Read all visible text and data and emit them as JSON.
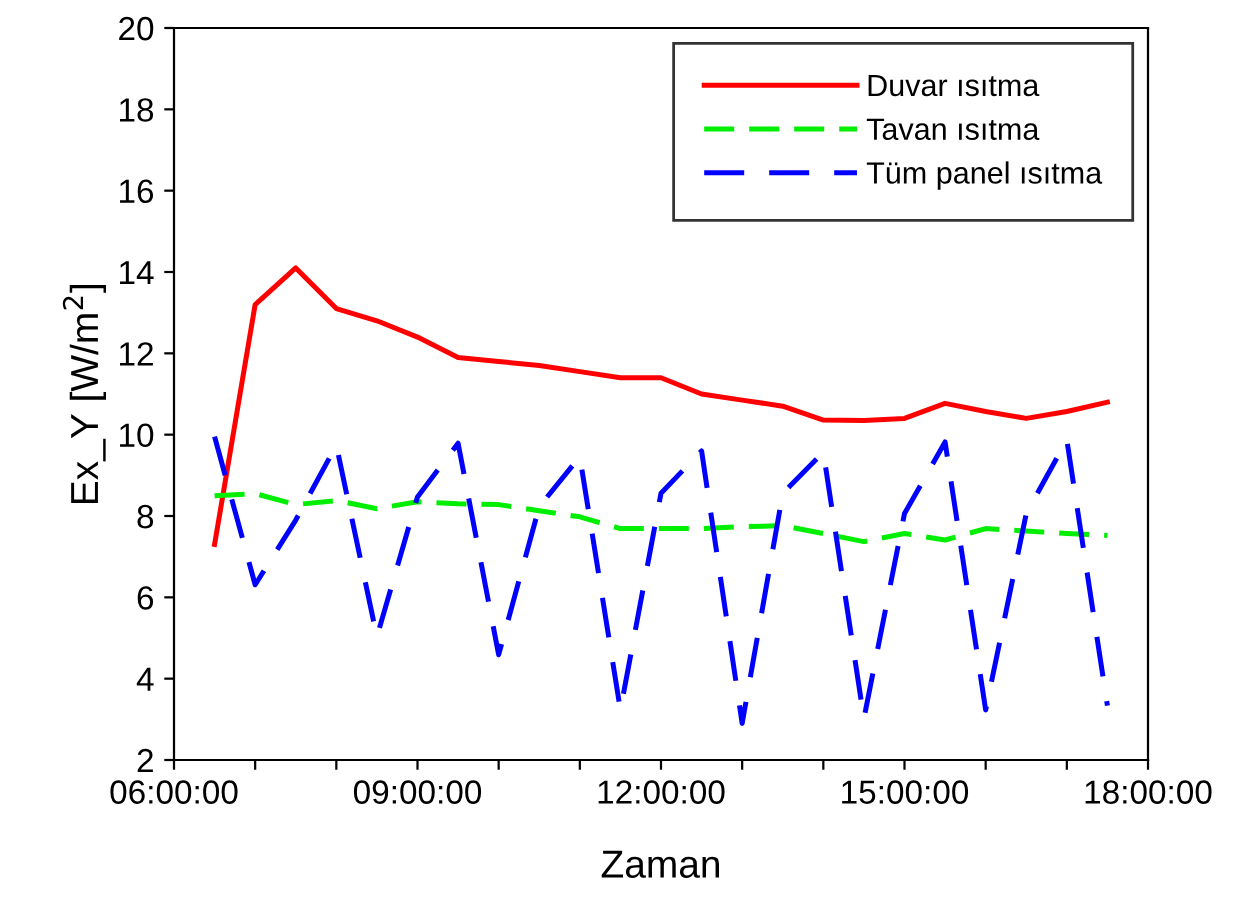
{
  "chart_data": {
    "type": "line",
    "xlabel": "Zaman",
    "ylabel": "Ex_Y [W/m$^{2}$]",
    "x": [
      6.5,
      7,
      7.5,
      8,
      8.5,
      9,
      9.5,
      10,
      10.5,
      11,
      11.5,
      12,
      12.5,
      13,
      13.5,
      14,
      14.5,
      15,
      15.5,
      16,
      16.5,
      17,
      17.5
    ],
    "series": [
      {
        "name": "Duvar ısıtma",
        "color": "#ff0000",
        "line_style": "solid",
        "values": [
          7.3,
          13.2,
          14.1,
          13.1,
          12.8,
          12.4,
          11.9,
          11.8,
          11.7,
          11.55,
          11.4,
          11.4,
          11.0,
          10.85,
          10.7,
          10.36,
          10.35,
          10.4,
          10.77,
          10.57,
          10.4,
          10.57,
          10.8
        ]
      },
      {
        "name": "Tavan ısıtma",
        "color": "#00ee00",
        "line_style": "dashed",
        "values": [
          8.5,
          8.55,
          8.28,
          8.38,
          8.18,
          8.35,
          8.3,
          8.28,
          8.13,
          7.98,
          7.69,
          7.69,
          7.69,
          7.74,
          7.76,
          7.57,
          7.37,
          7.57,
          7.41,
          7.69,
          7.63,
          7.57,
          7.52
        ]
      },
      {
        "name": "Tüm panel ısıtma",
        "color": "#0000ff",
        "line_style": "dashed",
        "values": [
          9.95,
          6.31,
          7.9,
          9.74,
          5.03,
          8.47,
          9.79,
          4.59,
          8.23,
          9.46,
          3.23,
          8.56,
          9.6,
          2.9,
          8.56,
          9.57,
          3.02,
          8.06,
          9.82,
          3.23,
          8.06,
          9.87,
          3.34
        ]
      }
    ],
    "xlim": [
      6,
      18
    ],
    "xticks": [
      {
        "value": 6,
        "label": "06:00:00"
      },
      {
        "value": 7,
        "label": null
      },
      {
        "value": 8,
        "label": null
      },
      {
        "value": 9,
        "label": "09:00:00"
      },
      {
        "value": 10,
        "label": null
      },
      {
        "value": 11,
        "label": null
      },
      {
        "value": 12,
        "label": "12:00:00"
      },
      {
        "value": 13,
        "label": null
      },
      {
        "value": 14,
        "label": null
      },
      {
        "value": 15,
        "label": "15:00:00"
      },
      {
        "value": 16,
        "label": null
      },
      {
        "value": 17,
        "label": null
      },
      {
        "value": 18,
        "label": "18:00:00"
      }
    ],
    "ylim": [
      2,
      20
    ],
    "yticks": [
      2,
      4,
      6,
      8,
      10,
      12,
      14,
      16,
      18,
      20
    ],
    "legend": "top right",
    "grid": false,
    "marker": "none"
  }
}
